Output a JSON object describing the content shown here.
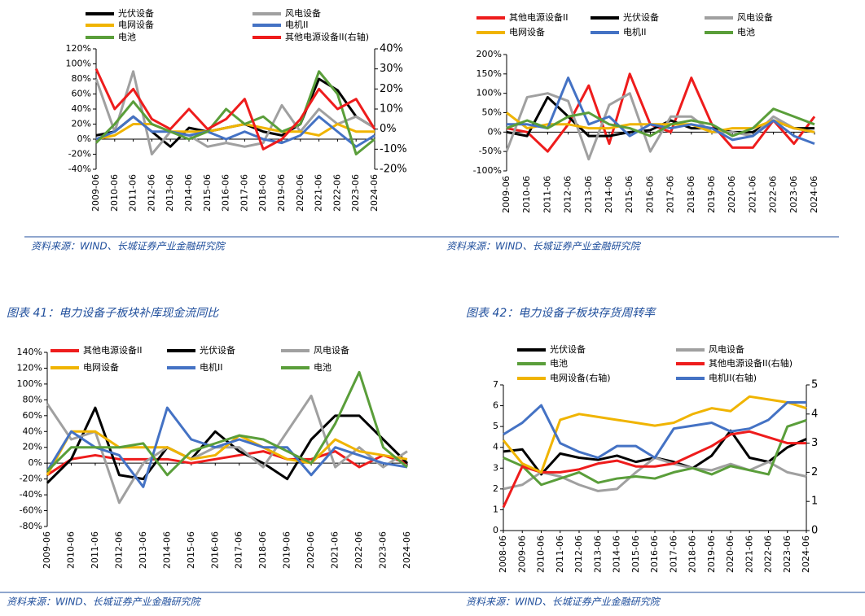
{
  "chart_data": [
    {
      "type": "line",
      "source": "资料来源：WIND、长城证券产业金融研究院",
      "categories": [
        "2009-06",
        "2010-06",
        "2011-06",
        "2012-06",
        "2013-06",
        "2014-06",
        "2015-06",
        "2016-06",
        "2017-06",
        "2018-06",
        "2019-06",
        "2020-06",
        "2021-06",
        "2022-06",
        "2023-06",
        "2024-06"
      ],
      "ylim": [
        -40,
        120
      ],
      "yticks": [
        {
          "value": -40,
          "label": "-40%"
        },
        {
          "value": -20,
          "label": "-20%"
        },
        {
          "value": 0,
          "label": "0%"
        },
        {
          "value": 20,
          "label": "20%"
        },
        {
          "value": 40,
          "label": "40%"
        },
        {
          "value": 60,
          "label": "60%"
        },
        {
          "value": 80,
          "label": "80%"
        },
        {
          "value": 100,
          "label": "100%"
        },
        {
          "value": 120,
          "label": "120%"
        }
      ],
      "y2lim": [
        -20,
        40
      ],
      "y2ticks": [
        {
          "value": -20,
          "label": "-20%"
        },
        {
          "value": -10,
          "label": "-10%"
        },
        {
          "value": 0,
          "label": "0%"
        },
        {
          "value": 10,
          "label": "10%"
        },
        {
          "value": 20,
          "label": "20%"
        },
        {
          "value": 30,
          "label": "30%"
        },
        {
          "value": 40,
          "label": "40%"
        }
      ],
      "series": [
        {
          "name": "光伏设备",
          "color": "#000000",
          "values": [
            5,
            10,
            30,
            10,
            -10,
            15,
            10,
            15,
            20,
            10,
            5,
            20,
            80,
            65,
            30,
            15
          ]
        },
        {
          "name": "风电设备",
          "color": "#a0a0a0",
          "values": [
            80,
            10,
            90,
            -20,
            10,
            5,
            -10,
            -5,
            -10,
            -5,
            45,
            10,
            40,
            20,
            30,
            15
          ]
        },
        {
          "name": "电网设备",
          "color": "#f0b400",
          "values": [
            0,
            5,
            20,
            20,
            10,
            10,
            10,
            15,
            20,
            15,
            10,
            10,
            5,
            20,
            10,
            10
          ]
        },
        {
          "name": "电机II",
          "color": "#4472c4",
          "values": [
            0,
            10,
            30,
            10,
            10,
            5,
            10,
            0,
            10,
            0,
            -5,
            5,
            30,
            10,
            -10,
            5
          ]
        },
        {
          "name": "电池",
          "color": "#5a9e3a",
          "values": [
            -5,
            20,
            50,
            20,
            10,
            0,
            10,
            40,
            20,
            30,
            10,
            20,
            90,
            60,
            -20,
            0
          ]
        },
        {
          "name": "其他电源设备II(右轴)",
          "color": "#ee1c1c",
          "axis": "y2",
          "values": [
            30,
            10,
            20,
            5,
            0,
            10,
            0,
            5,
            15,
            -10,
            -5,
            5,
            20,
            10,
            15,
            0
          ]
        }
      ]
    },
    {
      "type": "line",
      "source": "资料来源：WIND、长城证券产业金融研究院",
      "categories": [
        "2009-06",
        "2010-06",
        "2011-06",
        "2012-06",
        "2013-06",
        "2014-06",
        "2015-06",
        "2016-06",
        "2017-06",
        "2018-06",
        "2019-06",
        "2020-06",
        "2021-06",
        "2022-06",
        "2023-06",
        "2024-06"
      ],
      "ylim": [
        -100,
        200
      ],
      "yticks": [
        {
          "value": -100,
          "label": "-100%"
        },
        {
          "value": -50,
          "label": "-50%"
        },
        {
          "value": 0,
          "label": "0%"
        },
        {
          "value": 50,
          "label": "50%"
        },
        {
          "value": 100,
          "label": "100%"
        },
        {
          "value": 150,
          "label": "150%"
        },
        {
          "value": 200,
          "label": "200%"
        }
      ],
      "series": [
        {
          "name": "其他电源设备II",
          "color": "#ee1c1c",
          "values": [
            10,
            0,
            -50,
            20,
            120,
            -30,
            150,
            20,
            0,
            140,
            20,
            -40,
            -40,
            30,
            -30,
            40
          ]
        },
        {
          "name": "光伏设备",
          "color": "#000000",
          "values": [
            0,
            -10,
            90,
            40,
            -10,
            -10,
            0,
            5,
            30,
            10,
            10,
            0,
            0,
            30,
            10,
            10
          ]
        },
        {
          "name": "风电设备",
          "color": "#a0a0a0",
          "values": [
            -50,
            90,
            100,
            80,
            -70,
            70,
            100,
            -50,
            40,
            40,
            0,
            0,
            -10,
            40,
            10,
            0
          ]
        },
        {
          "name": "电网设备",
          "color": "#f0b400",
          "values": [
            50,
            10,
            20,
            20,
            10,
            10,
            20,
            20,
            20,
            20,
            0,
            10,
            10,
            30,
            10,
            0
          ]
        },
        {
          "name": "电机II",
          "color": "#4472c4",
          "values": [
            20,
            20,
            10,
            140,
            20,
            40,
            -10,
            20,
            10,
            20,
            10,
            -20,
            -10,
            30,
            -10,
            -30
          ]
        },
        {
          "name": "电池",
          "color": "#5a9e3a",
          "values": [
            10,
            30,
            10,
            40,
            50,
            20,
            10,
            -10,
            20,
            30,
            20,
            -10,
            10,
            60,
            40,
            20
          ]
        }
      ]
    },
    {
      "type": "line",
      "title": "图表 41：电力设备子板块补库现金流同比",
      "source": "资料来源：WIND、长城证券产业金融研究院",
      "categories": [
        "2009-06",
        "2010-06",
        "2011-06",
        "2012-06",
        "2013-06",
        "2014-06",
        "2015-06",
        "2016-06",
        "2017-06",
        "2018-06",
        "2019-06",
        "2020-06",
        "2021-06",
        "2022-06",
        "2023-06",
        "2024-06"
      ],
      "ylim": [
        -80,
        140
      ],
      "yticks": [
        {
          "value": -80,
          "label": "-80%"
        },
        {
          "value": -60,
          "label": "-60%"
        },
        {
          "value": -40,
          "label": "-40%"
        },
        {
          "value": -20,
          "label": "-20%"
        },
        {
          "value": 0,
          "label": "0%"
        },
        {
          "value": 20,
          "label": "20%"
        },
        {
          "value": 40,
          "label": "40%"
        },
        {
          "value": 60,
          "label": "60%"
        },
        {
          "value": 80,
          "label": "80%"
        },
        {
          "value": 100,
          "label": "100%"
        },
        {
          "value": 120,
          "label": "120%"
        },
        {
          "value": 140,
          "label": "140%"
        }
      ],
      "series": [
        {
          "name": "其他电源设备II",
          "color": "#ee1c1c",
          "values": [
            -15,
            5,
            10,
            5,
            5,
            5,
            0,
            5,
            10,
            15,
            5,
            5,
            15,
            -5,
            10,
            0
          ]
        },
        {
          "name": "光伏设备",
          "color": "#000000",
          "values": [
            -25,
            5,
            70,
            -15,
            -20,
            20,
            5,
            40,
            15,
            0,
            -20,
            30,
            60,
            60,
            30,
            0
          ]
        },
        {
          "name": "风电设备",
          "color": "#a0a0a0",
          "values": [
            75,
            30,
            40,
            -50,
            0,
            20,
            5,
            20,
            20,
            -5,
            40,
            85,
            -5,
            20,
            -5,
            15
          ]
        },
        {
          "name": "电网设备",
          "color": "#f0b400",
          "values": [
            -15,
            40,
            40,
            20,
            20,
            20,
            5,
            10,
            35,
            20,
            5,
            0,
            30,
            15,
            10,
            5
          ]
        },
        {
          "name": "电机II",
          "color": "#4472c4",
          "values": [
            -10,
            40,
            20,
            10,
            -30,
            70,
            30,
            20,
            30,
            20,
            20,
            -15,
            20,
            10,
            0,
            -5
          ]
        },
        {
          "name": "电池",
          "color": "#5a9e3a",
          "values": [
            -10,
            20,
            20,
            20,
            25,
            -15,
            15,
            25,
            35,
            30,
            15,
            0,
            50,
            115,
            20,
            -5
          ]
        }
      ]
    },
    {
      "type": "line",
      "title": "图表 42：电力设备子板块存货周转率",
      "source": "资料来源：WIND、长城证券产业金融研究院",
      "categories": [
        "2008-06",
        "2009-06",
        "2010-06",
        "2011-06",
        "2012-06",
        "2013-06",
        "2014-06",
        "2015-06",
        "2016-06",
        "2017-06",
        "2018-06",
        "2019-06",
        "2020-06",
        "2021-06",
        "2022-06",
        "2023-06",
        "2024-06"
      ],
      "ylim": [
        0,
        7
      ],
      "yticks": [
        0,
        1,
        2,
        3,
        4,
        5,
        6,
        7
      ],
      "y2lim": [
        0,
        5
      ],
      "y2ticks": [
        0,
        1,
        2,
        3,
        4,
        5
      ],
      "series": [
        {
          "name": "光伏设备",
          "color": "#000000",
          "values": [
            3.8,
            3.9,
            2.7,
            3.7,
            3.5,
            3.4,
            3.6,
            3.3,
            3.5,
            3.3,
            3.0,
            3.6,
            4.8,
            3.5,
            3.3,
            4.0,
            4.4
          ]
        },
        {
          "name": "风电设备",
          "color": "#a0a0a0",
          "values": [
            2.0,
            2.2,
            2.8,
            2.6,
            2.2,
            1.9,
            2.0,
            2.8,
            3.5,
            3.2,
            3.0,
            2.9,
            3.2,
            2.9,
            3.3,
            2.8,
            2.6
          ]
        },
        {
          "name": "电池",
          "color": "#5a9e3a",
          "values": [
            3.5,
            3.1,
            2.2,
            2.5,
            2.8,
            2.3,
            2.5,
            2.6,
            2.5,
            2.8,
            3.0,
            2.7,
            3.1,
            2.9,
            2.7,
            5.0,
            5.3
          ]
        },
        {
          "name": "其他电源设备II(右轴)",
          "color": "#ee1c1c",
          "axis": "y2",
          "values": [
            0.8,
            2.2,
            2.0,
            2.0,
            2.1,
            2.3,
            2.4,
            2.2,
            2.2,
            2.3,
            2.6,
            2.9,
            3.3,
            3.4,
            3.2,
            3.0,
            3.0
          ]
        },
        {
          "name": "电网设备(右轴)",
          "color": "#f0b400",
          "axis": "y2",
          "values": [
            3.1,
            2.3,
            2.0,
            3.8,
            4.0,
            3.9,
            3.8,
            3.7,
            3.6,
            3.7,
            4.0,
            4.2,
            4.1,
            4.6,
            4.5,
            4.4,
            4.2
          ]
        },
        {
          "name": "电机II(右轴)",
          "color": "#4472c4",
          "axis": "y2",
          "values": [
            3.3,
            3.7,
            4.3,
            3.0,
            2.7,
            2.5,
            2.9,
            2.9,
            2.5,
            3.5,
            3.6,
            3.7,
            3.4,
            3.5,
            3.8,
            4.4,
            4.4
          ]
        }
      ]
    }
  ]
}
